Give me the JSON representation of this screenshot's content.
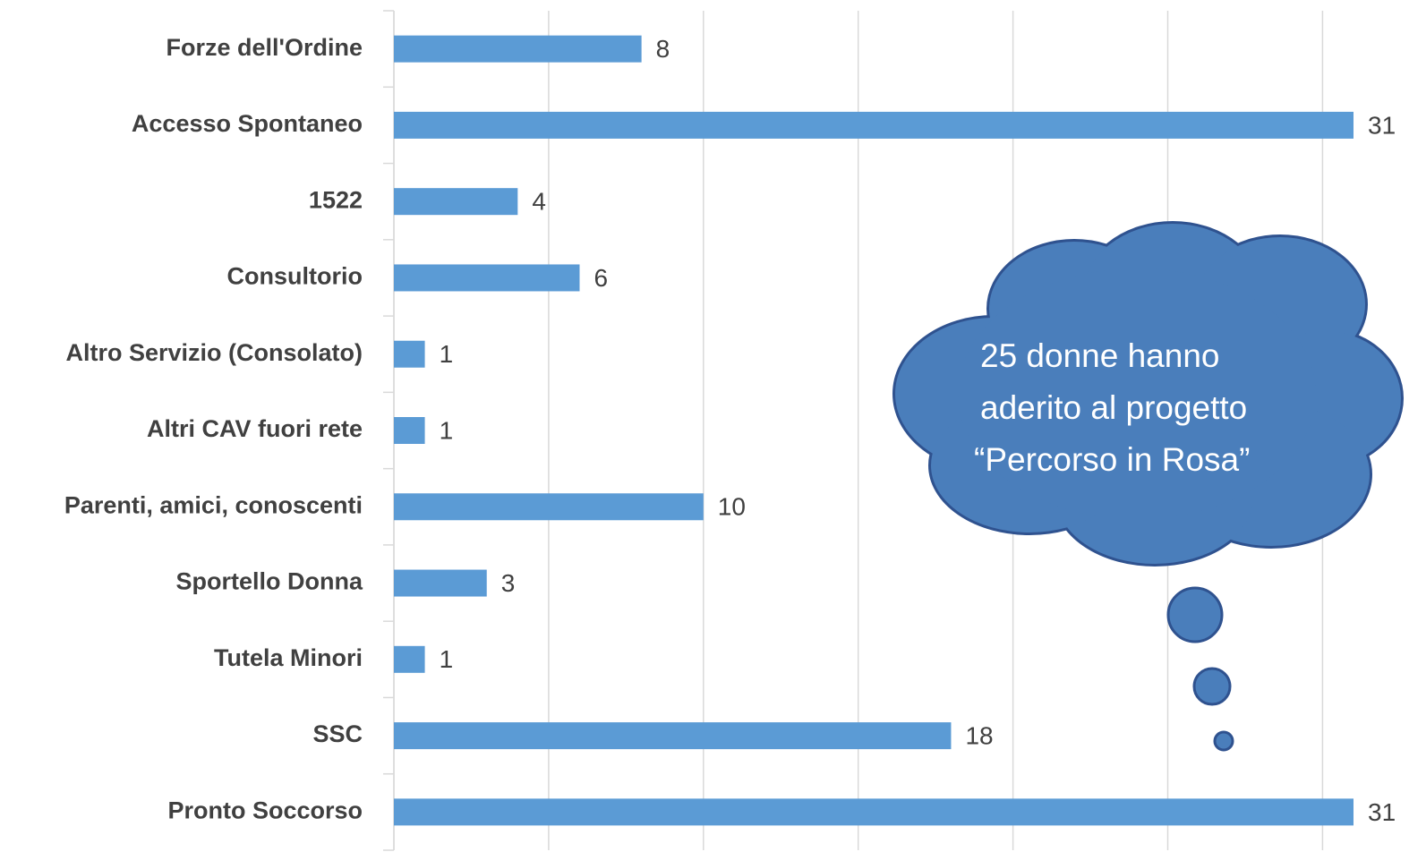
{
  "chart_data": {
    "type": "bar",
    "orientation": "horizontal",
    "categories": [
      "Forze dell'Ordine",
      "Accesso Spontaneo",
      "1522",
      "Consultorio",
      "Altro Servizio (Consolato)",
      "Altri CAV fuori rete",
      "Parenti, amici, conoscenti",
      "Sportello Donna",
      "Tutela Minori",
      "SSC",
      "Pronto Soccorso"
    ],
    "values": [
      8,
      31,
      4,
      6,
      1,
      1,
      10,
      3,
      1,
      18,
      31
    ],
    "color": "#5b9bd5",
    "xlim": [
      0,
      31
    ],
    "xticks": [
      0,
      5,
      10,
      15,
      20,
      25,
      30
    ],
    "grid": true,
    "annotation": [
      "25 donne hanno",
      "aderito al progetto",
      "“Percorso in Rosa”"
    ]
  }
}
